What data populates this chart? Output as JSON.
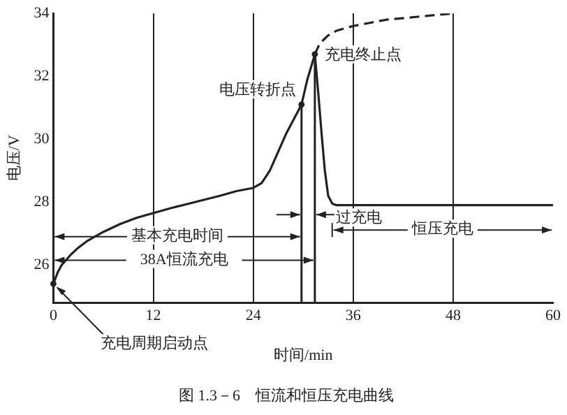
{
  "chart_data": {
    "type": "line",
    "xlabel": "时间/min",
    "ylabel": "电压/V",
    "xlim": [
      0,
      60
    ],
    "xticks": [
      0,
      12,
      24,
      36,
      48,
      60
    ],
    "ylim": [
      24.8,
      34
    ],
    "yticks": [
      26,
      28,
      30,
      32,
      34
    ],
    "grid": "x",
    "legend": false,
    "marker": "none",
    "series": [
      {
        "color": "#222222",
        "line_style": "solid",
        "x": [
          0,
          0.5,
          1,
          2,
          3,
          4,
          6,
          8,
          10,
          12,
          14,
          17,
          20,
          22,
          24,
          25,
          26,
          27,
          28,
          29,
          29.8,
          30.5,
          31.4,
          31.8,
          32.2,
          32.6,
          33,
          33.5,
          34,
          36,
          48,
          60
        ],
        "values": [
          25.4,
          25.75,
          26.0,
          26.3,
          26.55,
          26.75,
          27.05,
          27.3,
          27.5,
          27.65,
          27.8,
          28.0,
          28.2,
          28.35,
          28.45,
          28.6,
          29.0,
          29.6,
          30.2,
          30.7,
          31.1,
          31.9,
          32.7,
          31.5,
          30.2,
          29.0,
          28.2,
          27.95,
          27.9,
          27.9,
          27.9,
          27.9
        ]
      },
      {
        "color": "#222222",
        "line_style": "dashed",
        "x": [
          31.4,
          32,
          33,
          34,
          36,
          38,
          40,
          44,
          48
        ],
        "values": [
          32.7,
          33.05,
          33.3,
          33.45,
          33.6,
          33.7,
          33.8,
          33.9,
          34.0
        ]
      }
    ],
    "ref_lines": [
      {
        "axis": "x",
        "value": 29.8
      },
      {
        "axis": "x",
        "value": 31.4
      }
    ],
    "annotations": [
      {
        "text": "电压转折点",
        "x": 29.8,
        "y": 31.1
      },
      {
        "text": "充电终止点",
        "x": 31.4,
        "y": 32.7
      },
      {
        "text": "充电周期启动点",
        "x": 0,
        "y": 25.4
      },
      "图 1.3－6　恒流和恒压充电曲线",
      {
        "text": "基本充电时间",
        "x": 29.8,
        "y": 26.9
      },
      {
        "text": "38A恒流充电",
        "x": 31.4,
        "y": 26.15
      },
      {
        "text": "过充电",
        "x": 31.4,
        "y": 27.6
      },
      "恒压充电"
    ]
  }
}
